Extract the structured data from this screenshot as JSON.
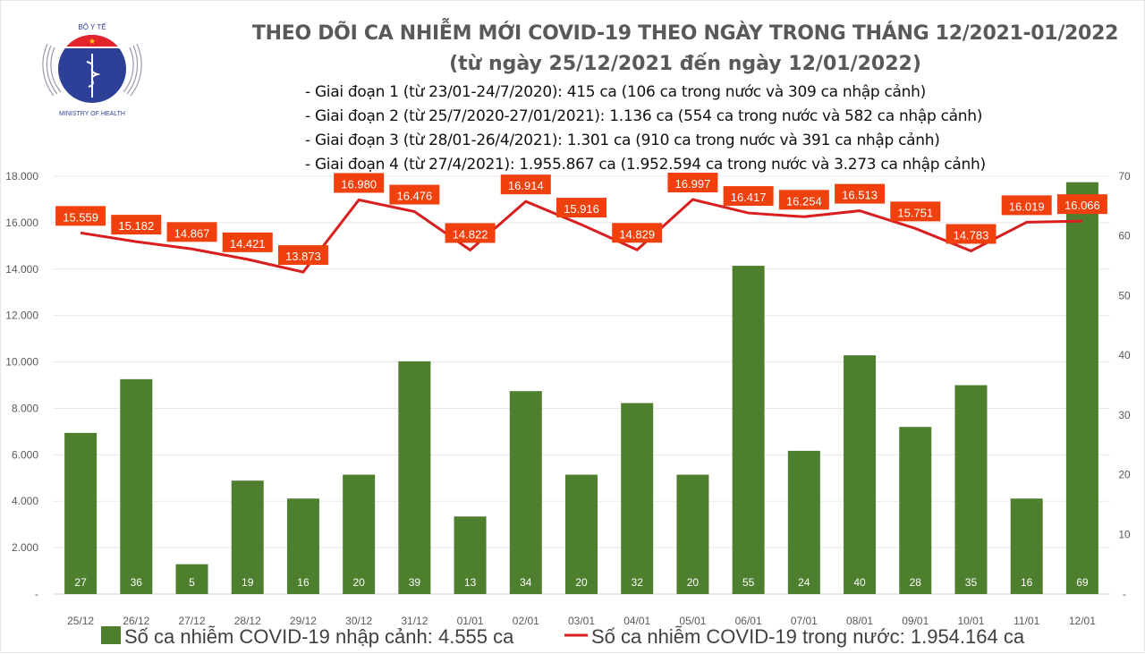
{
  "logo": {
    "top_text": "BỘ Y TẾ",
    "bottom_text": "MINISTRY OF HEALTH"
  },
  "title": "THEO DÕI CA NHIỄM MỚI COVID-19 THEO NGÀY TRONG THÁNG 12/2021-01/2022",
  "subtitle": "(từ ngày 25/12/2021 đến ngày 12/01/2022)",
  "phases": [
    "- Giai đoạn 1 (từ 23/01-24/7/2020): 415 ca (106 ca trong nước và 309 ca nhập cảnh)",
    "- Giai đoạn 2 (từ 25/7/2020-27/01/2021): 1.136 ca (554 ca trong nước và 582 ca nhập cảnh)",
    "- Giai đoạn 3 (từ 28/01-26/4/2021): 1.301 ca (910 ca trong nước và 391 ca nhập cảnh)",
    "- Giai đoạn 4 (từ 27/4/2021): 1.955.867 ca (1.952.594 ca trong nước và 3.273 ca nhập cảnh)"
  ],
  "chart_data": {
    "type": "bar+line",
    "categories": [
      "25/12",
      "26/12",
      "27/12",
      "28/12",
      "29/12",
      "30/12",
      "31/12",
      "01/01",
      "02/01",
      "03/01",
      "04/01",
      "05/01",
      "06/01",
      "07/01",
      "08/01",
      "09/01",
      "10/01",
      "11/01",
      "12/01"
    ],
    "series": [
      {
        "name": "Số ca nhiễm COVID-19 nhập cảnh: 4.555 ca",
        "type": "bar",
        "axis": "right",
        "color": "#4e7f2f",
        "values": [
          27,
          36,
          5,
          19,
          16,
          20,
          39,
          13,
          34,
          20,
          32,
          20,
          55,
          24,
          40,
          28,
          35,
          16,
          69
        ]
      },
      {
        "name": "Số ca nhiễm COVID-19 trong nước: 1.954.164 ca",
        "type": "line",
        "axis": "left",
        "color": "#d81e1e",
        "label_color": "#f0400e",
        "values": [
          15559,
          15182,
          14867,
          14421,
          13873,
          16980,
          16476,
          14822,
          16914,
          15916,
          14829,
          16997,
          16417,
          16254,
          16513,
          15751,
          14783,
          16019,
          16066
        ]
      }
    ],
    "y_left": {
      "range": [
        0,
        18000
      ],
      "ticks": [
        "-",
        "2.000",
        "4.000",
        "6.000",
        "8.000",
        "10.000",
        "12.000",
        "14.000",
        "16.000",
        "18.000"
      ]
    },
    "y_right": {
      "range": [
        0,
        70
      ],
      "ticks": [
        "-",
        "10",
        "20",
        "30",
        "40",
        "50",
        "60",
        "70"
      ]
    },
    "grid": true,
    "legend_placement": "bottom"
  }
}
